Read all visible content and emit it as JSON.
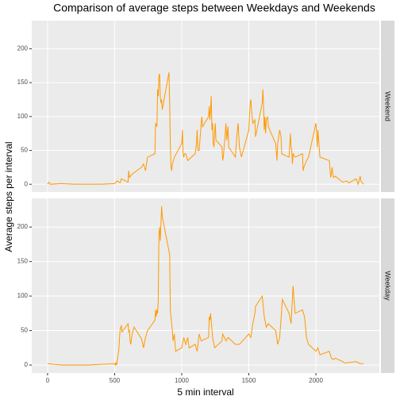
{
  "chart_data": {
    "type": "line",
    "title": "Comparison of average steps between Weekdays and Weekends",
    "xlabel": "5 min interval",
    "ylabel": "Average steps per interval",
    "xlim": [
      -118,
      2473
    ],
    "xticks": [
      0,
      500,
      1000,
      1500,
      2000
    ],
    "ylim": [
      -11.5,
      241.5
    ],
    "yticks": [
      0,
      50,
      100,
      150,
      200
    ],
    "grid": true,
    "series": [
      {
        "name": "Weekend",
        "color": "#ff9900",
        "x": [
          0,
          10,
          20,
          100,
          200,
          300,
          400,
          500,
          520,
          540,
          550,
          600,
          605,
          610,
          630,
          700,
          715,
          730,
          745,
          800,
          805,
          810,
          815,
          820,
          825,
          830,
          835,
          840,
          845,
          850,
          855,
          900,
          905,
          910,
          915,
          920,
          925,
          930,
          945,
          1000,
          1005,
          1010,
          1015,
          1020,
          1030,
          1045,
          1100,
          1110,
          1115,
          1120,
          1130,
          1145,
          1150,
          1155,
          1200,
          1205,
          1210,
          1215,
          1220,
          1225,
          1230,
          1235,
          1240,
          1245,
          1250,
          1255,
          1300,
          1305,
          1310,
          1330,
          1335,
          1345,
          1350,
          1400,
          1410,
          1420,
          1430,
          1445,
          1500,
          1510,
          1515,
          1520,
          1530,
          1545,
          1550,
          1600,
          1605,
          1610,
          1615,
          1620,
          1625,
          1630,
          1640,
          1645,
          1700,
          1710,
          1715,
          1730,
          1740,
          1745,
          1800,
          1810,
          1815,
          1820,
          1825,
          1830,
          1845,
          1900,
          1905,
          1910,
          1930,
          1945,
          2000,
          2005,
          2010,
          2015,
          2030,
          2100,
          2110,
          2115,
          2120,
          2130,
          2145,
          2200,
          2230,
          2245,
          2300,
          2315,
          2330,
          2335,
          2355
        ],
        "values": [
          0,
          3,
          0,
          1,
          0,
          0,
          0,
          1,
          5,
          2,
          8,
          3,
          20,
          10,
          15,
          25,
          30,
          20,
          40,
          45,
          90,
          88,
          85,
          140,
          130,
          160,
          163,
          130,
          120,
          125,
          110,
          160,
          165,
          120,
          60,
          25,
          20,
          30,
          40,
          60,
          80,
          45,
          40,
          45,
          45,
          35,
          45,
          60,
          80,
          50,
          50,
          90,
          100,
          85,
          100,
          115,
          95,
          110,
          130,
          80,
          90,
          60,
          55,
          75,
          90,
          65,
          55,
          35,
          40,
          90,
          65,
          85,
          55,
          40,
          70,
          90,
          55,
          40,
          80,
          120,
          125,
          110,
          90,
          95,
          70,
          120,
          140,
          115,
          80,
          100,
          75,
          95,
          100,
          85,
          60,
          35,
          60,
          80,
          70,
          45,
          40,
          75,
          55,
          50,
          30,
          45,
          40,
          45,
          20,
          25,
          35,
          40,
          90,
          75,
          55,
          80,
          40,
          35,
          10,
          15,
          25,
          10,
          12,
          3,
          5,
          2,
          8,
          0,
          12,
          5,
          0
        ]
      },
      {
        "name": "Weekday",
        "color": "#ff9900",
        "x": [
          0,
          100,
          200,
          300,
          400,
          500,
          505,
          510,
          515,
          520,
          530,
          535,
          540,
          545,
          550,
          555,
          600,
          605,
          610,
          615,
          620,
          630,
          645,
          700,
          710,
          715,
          730,
          745,
          800,
          805,
          810,
          815,
          820,
          825,
          830,
          835,
          840,
          845,
          850,
          855,
          900,
          905,
          910,
          915,
          920,
          930,
          935,
          945,
          950,
          955,
          1000,
          1015,
          1030,
          1045,
          1055,
          1100,
          1115,
          1130,
          1145,
          1200,
          1205,
          1210,
          1215,
          1230,
          1245,
          1300,
          1305,
          1330,
          1345,
          1400,
          1430,
          1500,
          1515,
          1530,
          1545,
          1550,
          1600,
          1605,
          1615,
          1630,
          1645,
          1700,
          1715,
          1730,
          1745,
          1750,
          1800,
          1815,
          1830,
          1835,
          1845,
          1900,
          1915,
          1930,
          1945,
          2000,
          2015,
          2030,
          2100,
          2115,
          2130,
          2145,
          2200,
          2215,
          2300,
          2330,
          2355
        ],
        "values": [
          2,
          0,
          0,
          0,
          1,
          2,
          0,
          4,
          0,
          8,
          20,
          35,
          50,
          55,
          57,
          48,
          60,
          48,
          50,
          35,
          30,
          45,
          55,
          38,
          30,
          25,
          40,
          50,
          65,
          80,
          70,
          80,
          75,
          95,
          190,
          200,
          180,
          205,
          230,
          215,
          170,
          165,
          160,
          80,
          70,
          50,
          35,
          45,
          30,
          20,
          25,
          40,
          30,
          40,
          25,
          30,
          20,
          45,
          35,
          40,
          70,
          65,
          75,
          40,
          25,
          35,
          45,
          35,
          40,
          30,
          30,
          45,
          40,
          60,
          75,
          85,
          100,
          90,
          70,
          55,
          60,
          50,
          30,
          40,
          80,
          95,
          75,
          60,
          115,
          100,
          75,
          80,
          70,
          40,
          30,
          20,
          25,
          15,
          20,
          10,
          8,
          10,
          5,
          3,
          5,
          2,
          2
        ]
      }
    ]
  }
}
